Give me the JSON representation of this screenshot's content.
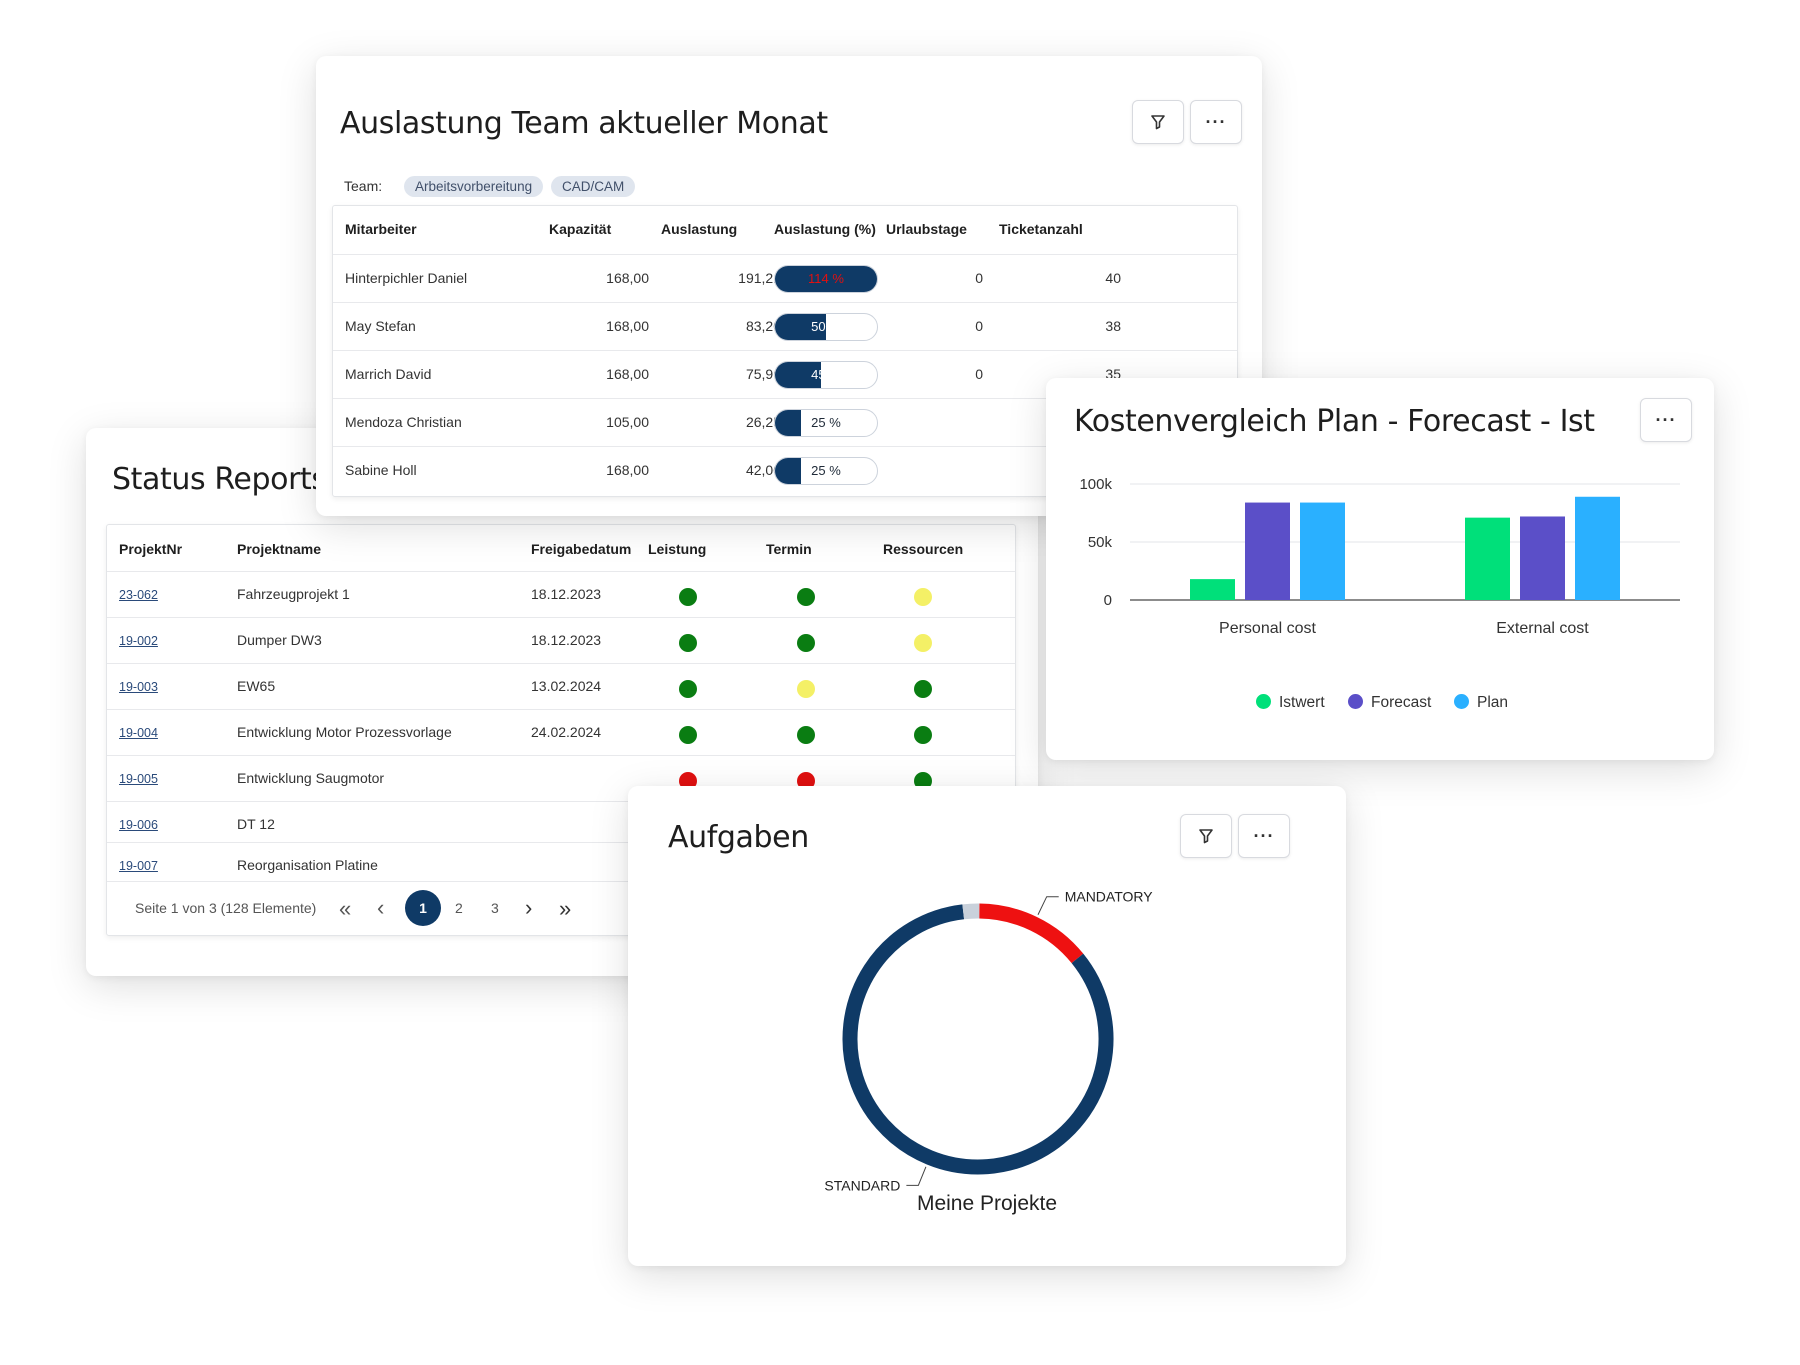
{
  "team_util": {
    "title": "Auslastung Team aktueller Monat",
    "team_label": "Team:",
    "teams": [
      "Arbeitsvorbereitung",
      "CAD/CAM"
    ],
    "headers": [
      "Mitarbeiter",
      "Kapazität",
      "Auslastung",
      "Auslastung (%)",
      "Urlaubstage",
      "Ticketanzahl"
    ],
    "rows": [
      {
        "name": "Hinterpichler Daniel",
        "capacity": "168,00",
        "load": "191,21",
        "pct_label": "114 %",
        "pct": 114,
        "vacation": "0",
        "tickets": "40"
      },
      {
        "name": "May Stefan",
        "capacity": "168,00",
        "load": "83,20",
        "pct_label": "50 %",
        "pct": 50,
        "vacation": "0",
        "tickets": "38"
      },
      {
        "name": "Marrich David",
        "capacity": "168,00",
        "load": "75,96",
        "pct_label": "45 %",
        "pct": 45,
        "vacation": "0",
        "tickets": "35"
      },
      {
        "name": "Mendoza Christian",
        "capacity": "105,00",
        "load": "26,25",
        "pct_label": "25 %",
        "pct": 25,
        "vacation": "",
        "tickets": ""
      },
      {
        "name": "Sabine Holl",
        "capacity": "168,00",
        "load": "42,00",
        "pct_label": "25 %",
        "pct": 25,
        "vacation": "",
        "tickets": ""
      }
    ]
  },
  "status_reports": {
    "title": "Status Reports",
    "headers": [
      "ProjektNr",
      "Projektname",
      "Freigabedatum",
      "Leistung",
      "Termin",
      "Ressourcen"
    ],
    "rows": [
      {
        "nr": "23-062",
        "name": "Fahrzeugprojekt 1",
        "date": "18.12.2023",
        "leistung": "green",
        "termin": "green",
        "ressourcen": "yellow"
      },
      {
        "nr": "19-002",
        "name": "Dumper DW3",
        "date": "18.12.2023",
        "leistung": "green",
        "termin": "green",
        "ressourcen": "yellow"
      },
      {
        "nr": "19-003",
        "name": "EW65",
        "date": "13.02.2024",
        "leistung": "green",
        "termin": "yellow",
        "ressourcen": "green"
      },
      {
        "nr": "19-004",
        "name": "Entwicklung Motor Prozessvorlage",
        "date": "24.02.2024",
        "leistung": "green",
        "termin": "green",
        "ressourcen": "green"
      },
      {
        "nr": "19-005",
        "name": "Entwicklung Saugmotor",
        "date": "",
        "leistung": "red",
        "termin": "red",
        "ressourcen": "green"
      },
      {
        "nr": "19-006",
        "name": "DT 12",
        "date": "",
        "leistung": "",
        "termin": "",
        "ressourcen": ""
      },
      {
        "nr": "19-007",
        "name": "Reorganisation Platine",
        "date": "",
        "leistung": "",
        "termin": "",
        "ressourcen": ""
      }
    ],
    "pagination": {
      "summary": "Seite 1 von 3 (128 Elemente)",
      "pages": [
        "1",
        "2",
        "3"
      ],
      "current": "1"
    }
  },
  "status_colors": {
    "green": "#0a7d12",
    "yellow": "#f4f066",
    "red": "#e01010"
  },
  "cost_chart": {
    "title": "Kostenvergleich Plan - Forecast - Ist",
    "chart_data": {
      "type": "bar",
      "categories": [
        "Personal cost",
        "External cost"
      ],
      "series": [
        {
          "name": "Istwert",
          "values": [
            18000,
            71000
          ],
          "color": "#00e07a"
        },
        {
          "name": "Forecast",
          "values": [
            84000,
            72000
          ],
          "color": "#5b4fc8"
        },
        {
          "name": "Plan",
          "values": [
            84000,
            89000
          ],
          "color": "#2ab0ff"
        }
      ],
      "yticks": [
        "100k",
        "50k",
        "0"
      ],
      "ylim": [
        0,
        100000
      ],
      "grid": true,
      "legend": "bottom"
    }
  },
  "tasks": {
    "title": "Aufgaben",
    "chart_data": {
      "type": "pie",
      "title": "Meine Projekte",
      "slices": [
        {
          "label": "MANDATORY",
          "value": 14,
          "color": "#ee1111"
        },
        {
          "label": "STANDARD",
          "value": 84,
          "color": "#0f3a66"
        },
        {
          "label": "",
          "value": 2,
          "color": "#c9d1db"
        }
      ]
    }
  }
}
